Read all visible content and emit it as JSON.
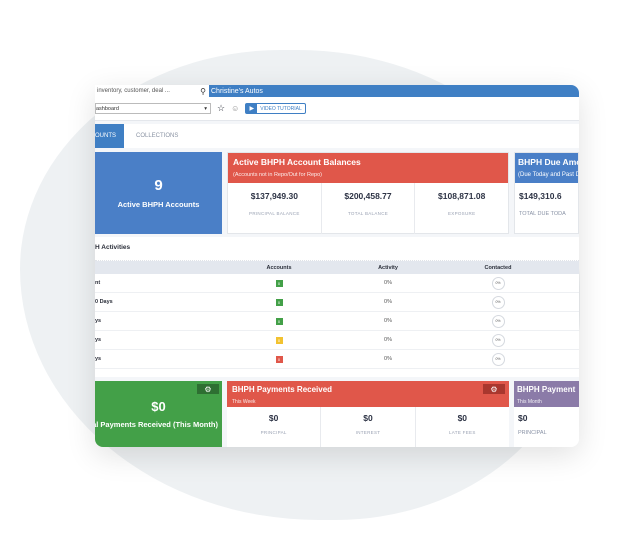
{
  "header": {
    "search_placeholder": "inventory, customer, deal ...",
    "dealer": "Christine's Autos"
  },
  "toolbar": {
    "dashboard_select": "ashboard",
    "video_tutorial": "VIDEO TUTORIAL"
  },
  "tabs": [
    {
      "label": "OUNTS",
      "active": true
    },
    {
      "label": "COLLECTIONS",
      "active": false
    }
  ],
  "active_accounts": {
    "count": "9",
    "label": "Active BHPH Accounts"
  },
  "balances": {
    "title": "Active BHPH Account Balances",
    "subtitle": "(Accounts not in Repo/Out for Repo)",
    "items": [
      {
        "value": "$137,949.30",
        "label": "PRINCIPAL BALANCE"
      },
      {
        "value": "$200,458.77",
        "label": "TOTAL BALANCE"
      },
      {
        "value": "$108,871.08",
        "label": "EXPOSURE"
      }
    ]
  },
  "due": {
    "title": "BHPH Due Amo",
    "subtitle": "(Due Today and Past D",
    "items": [
      {
        "value": "$149,310.6",
        "label": "TOTAL DUE TODA"
      }
    ]
  },
  "activities": {
    "title": "H Activities",
    "headers": [
      "",
      "Accounts",
      "Activity",
      "Contacted"
    ],
    "rows": [
      {
        "label": "nt",
        "accounts": "0",
        "status": "green",
        "activity": "0%",
        "contacted": "0%"
      },
      {
        "label": "0 Days",
        "accounts": "0",
        "status": "green",
        "activity": "0%",
        "contacted": "0%"
      },
      {
        "label": "ys",
        "accounts": "0",
        "status": "green",
        "activity": "0%",
        "contacted": "0%"
      },
      {
        "label": "ys",
        "accounts": "0",
        "status": "yellow",
        "activity": "0%",
        "contacted": "0%"
      },
      {
        "label": "ys",
        "accounts": "0",
        "status": "red",
        "activity": "0%",
        "contacted": "0%"
      }
    ]
  },
  "total_payments": {
    "value": "$0",
    "label": "otal Payments Received (This Month)"
  },
  "payments_week": {
    "title": "BHPH Payments Received",
    "subtitle": "This Week",
    "items": [
      {
        "value": "$0",
        "label": "PRINCIPAL"
      },
      {
        "value": "$0",
        "label": "INTEREST"
      },
      {
        "value": "$0",
        "label": "LATE FEES"
      }
    ]
  },
  "payments_month": {
    "title": "BHPH Payment",
    "subtitle": "This Month",
    "items": [
      {
        "value": "$0",
        "label": "PRINCIPAL"
      }
    ]
  },
  "colors": {
    "blue": "#3f7fc4",
    "red": "#e0574a",
    "green": "#43a048",
    "purple": "#8b7ba8",
    "yellow": "#f2c230"
  }
}
